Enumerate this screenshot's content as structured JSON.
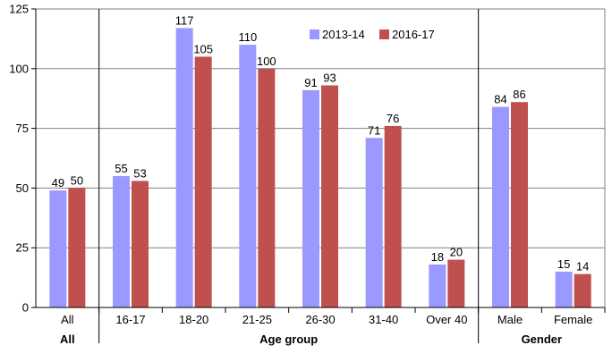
{
  "chart_data": {
    "type": "bar",
    "categories": [
      "All",
      "16-17",
      "18-20",
      "21-25",
      "26-30",
      "31-40",
      "Over 40",
      "Male",
      "Female"
    ],
    "groups": [
      {
        "label": "All",
        "categories": [
          "All"
        ]
      },
      {
        "label": "Age group",
        "categories": [
          "16-17",
          "18-20",
          "21-25",
          "26-30",
          "31-40",
          "Over 40"
        ]
      },
      {
        "label": "Gender",
        "categories": [
          "Male",
          "Female"
        ]
      }
    ],
    "series": [
      {
        "name": "2013-14",
        "color": "#9999ff",
        "values": [
          49,
          55,
          117,
          110,
          91,
          71,
          18,
          84,
          15
        ]
      },
      {
        "name": "2016-17",
        "color": "#c0504d",
        "values": [
          50,
          53,
          105,
          100,
          93,
          76,
          20,
          86,
          14
        ]
      }
    ],
    "ylim": [
      0,
      125
    ],
    "yticks": [
      0,
      25,
      50,
      75,
      100,
      125
    ],
    "grid": true,
    "legend_position": "top-center"
  }
}
